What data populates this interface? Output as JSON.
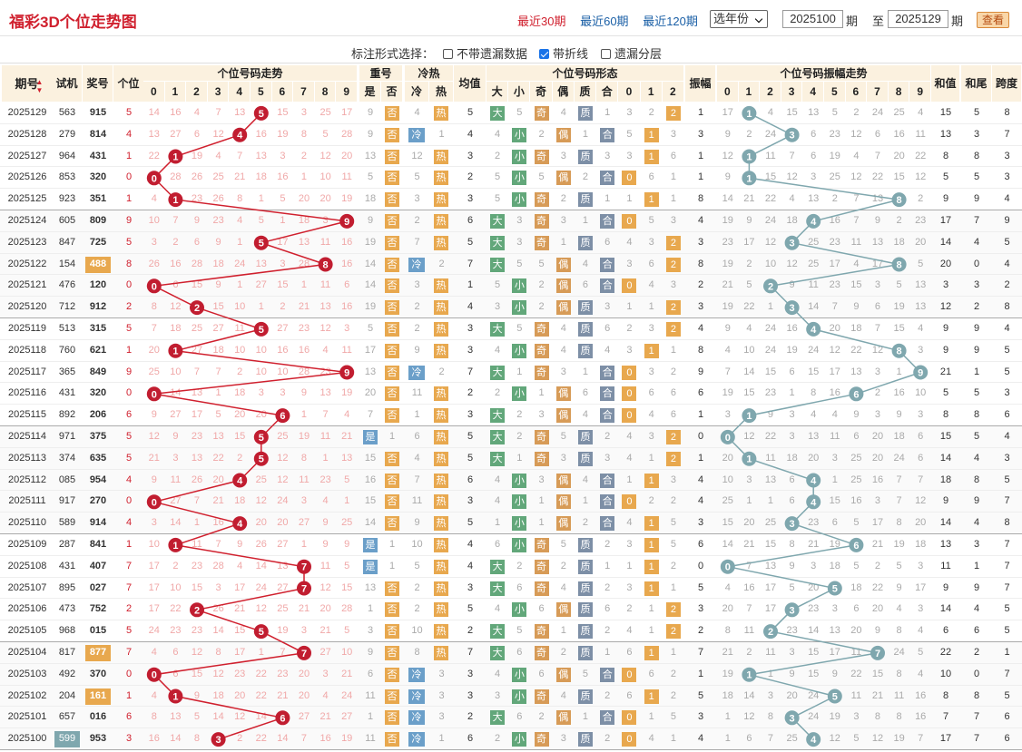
{
  "title": "福彩3D个位走势图",
  "periods": [
    "最近30期",
    "最近60期",
    "最近120期"
  ],
  "year_select": "选年份",
  "from": "2025100",
  "from_unit": "期",
  "to_label": "至",
  "to": "2025129",
  "to_unit": "期",
  "query": "查看",
  "option_label": "标注形式选择：",
  "options": [
    {
      "label": "不带遗漏数据",
      "checked": false
    },
    {
      "label": "带折线",
      "checked": true
    },
    {
      "label": "遗漏分层",
      "checked": false
    }
  ],
  "headers": {
    "issue": "期号",
    "test": "试机",
    "prize": "奖号",
    "pos": "个位",
    "trend": "个位号码走势",
    "repeat": "重号",
    "hotcold": "冷热",
    "avg": "均值",
    "shape": "个位号码形态",
    "amp": "振幅",
    "amptrend": "个位号码振幅走势",
    "sum": "和值",
    "tail": "和尾",
    "span": "跨度"
  },
  "subheaders": {
    "digits": [
      "0",
      "1",
      "2",
      "3",
      "4",
      "5",
      "6",
      "7",
      "8",
      "9"
    ],
    "repeat": [
      "是",
      "否"
    ],
    "hotcold": [
      "冷",
      "热"
    ],
    "shape": [
      "大",
      "小",
      "奇",
      "偶",
      "质",
      "合",
      "0",
      "1",
      "2"
    ]
  },
  "rows": [
    {
      "issue": "2025129",
      "test": "563",
      "prize": "915",
      "d": 5,
      "rep": 0,
      "hot": 1,
      "avg": "5",
      "big": 1,
      "odd": 1,
      "prime": 1,
      "mod": 2,
      "amp": "1",
      "sum": "15",
      "tail": "5",
      "span": "8"
    },
    {
      "issue": "2025128",
      "test": "279",
      "prize": "814",
      "d": 4,
      "rep": 0,
      "hot": 0,
      "avg": "4",
      "big": 0,
      "odd": 0,
      "prime": 0,
      "mod": 1,
      "amp": "3",
      "sum": "13",
      "tail": "3",
      "span": "7"
    },
    {
      "issue": "2025127",
      "test": "964",
      "prize": "431",
      "d": 1,
      "rep": 0,
      "hot": 1,
      "avg": "3",
      "big": 0,
      "odd": 1,
      "prime": 1,
      "mod": 1,
      "amp": "1",
      "sum": "8",
      "tail": "8",
      "span": "3"
    },
    {
      "issue": "2025126",
      "test": "853",
      "prize": "320",
      "d": 0,
      "rep": 0,
      "hot": 1,
      "avg": "2",
      "big": 0,
      "odd": 0,
      "prime": 0,
      "mod": 0,
      "amp": "1",
      "sum": "5",
      "tail": "5",
      "span": "3"
    },
    {
      "issue": "2025125",
      "test": "923",
      "prize": "351",
      "d": 1,
      "rep": 0,
      "hot": 1,
      "avg": "3",
      "big": 0,
      "odd": 1,
      "prime": 1,
      "mod": 1,
      "amp": "8",
      "sum": "9",
      "tail": "9",
      "span": "4"
    },
    {
      "issue": "2025124",
      "test": "605",
      "prize": "809",
      "d": 9,
      "rep": 0,
      "hot": 1,
      "avg": "6",
      "big": 1,
      "odd": 1,
      "prime": 0,
      "mod": 0,
      "amp": "4",
      "sum": "17",
      "tail": "7",
      "span": "9"
    },
    {
      "issue": "2025123",
      "test": "847",
      "prize": "725",
      "d": 5,
      "rep": 0,
      "hot": 1,
      "avg": "5",
      "big": 1,
      "odd": 1,
      "prime": 1,
      "mod": 2,
      "amp": "3",
      "sum": "14",
      "tail": "4",
      "span": "5"
    },
    {
      "issue": "2025122",
      "test": "154",
      "prize": "488",
      "d": 8,
      "rep": 0,
      "hot": 0,
      "avg": "7",
      "big": 1,
      "odd": 0,
      "prime": 0,
      "mod": 2,
      "amp": "8",
      "sum": "20",
      "tail": "0",
      "span": "4",
      "hl": true
    },
    {
      "issue": "2025121",
      "test": "476",
      "prize": "120",
      "d": 0,
      "rep": 0,
      "hot": 1,
      "avg": "1",
      "big": 0,
      "odd": 0,
      "prime": 0,
      "mod": 0,
      "amp": "2",
      "sum": "3",
      "tail": "3",
      "span": "2"
    },
    {
      "issue": "2025120",
      "test": "712",
      "prize": "912",
      "d": 2,
      "rep": 0,
      "hot": 1,
      "avg": "4",
      "big": 0,
      "odd": 0,
      "prime": 1,
      "mod": 2,
      "amp": "3",
      "sum": "12",
      "tail": "2",
      "span": "8"
    },
    {
      "issue": "2025119",
      "test": "513",
      "prize": "315",
      "d": 5,
      "rep": 0,
      "hot": 1,
      "avg": "3",
      "big": 1,
      "odd": 1,
      "prime": 1,
      "mod": 2,
      "amp": "4",
      "sum": "9",
      "tail": "9",
      "span": "4"
    },
    {
      "issue": "2025118",
      "test": "760",
      "prize": "621",
      "d": 1,
      "rep": 0,
      "hot": 1,
      "avg": "3",
      "big": 0,
      "odd": 1,
      "prime": 1,
      "mod": 1,
      "amp": "8",
      "sum": "9",
      "tail": "9",
      "span": "5"
    },
    {
      "issue": "2025117",
      "test": "365",
      "prize": "849",
      "d": 9,
      "rep": 0,
      "hot": 0,
      "avg": "7",
      "big": 1,
      "odd": 1,
      "prime": 0,
      "mod": 0,
      "amp": "9",
      "sum": "21",
      "tail": "1",
      "span": "5"
    },
    {
      "issue": "2025116",
      "test": "431",
      "prize": "320",
      "d": 0,
      "rep": 0,
      "hot": 1,
      "avg": "2",
      "big": 0,
      "odd": 0,
      "prime": 0,
      "mod": 0,
      "amp": "6",
      "sum": "5",
      "tail": "5",
      "span": "3"
    },
    {
      "issue": "2025115",
      "test": "892",
      "prize": "206",
      "d": 6,
      "rep": 0,
      "hot": 1,
      "avg": "3",
      "big": 1,
      "odd": 0,
      "prime": 0,
      "mod": 0,
      "amp": "1",
      "sum": "8",
      "tail": "8",
      "span": "6"
    },
    {
      "issue": "2025114",
      "test": "971",
      "prize": "375",
      "d": 5,
      "rep": 1,
      "hot": 1,
      "avg": "5",
      "big": 1,
      "odd": 1,
      "prime": 1,
      "mod": 2,
      "amp": "0",
      "sum": "15",
      "tail": "5",
      "span": "4"
    },
    {
      "issue": "2025113",
      "test": "374",
      "prize": "635",
      "d": 5,
      "rep": 0,
      "hot": 1,
      "avg": "5",
      "big": 1,
      "odd": 1,
      "prime": 1,
      "mod": 2,
      "amp": "1",
      "sum": "14",
      "tail": "4",
      "span": "3"
    },
    {
      "issue": "2025112",
      "test": "085",
      "prize": "954",
      "d": 4,
      "rep": 0,
      "hot": 1,
      "avg": "6",
      "big": 0,
      "odd": 0,
      "prime": 0,
      "mod": 1,
      "amp": "4",
      "sum": "18",
      "tail": "8",
      "span": "5"
    },
    {
      "issue": "2025111",
      "test": "917",
      "prize": "270",
      "d": 0,
      "rep": 0,
      "hot": 1,
      "avg": "3",
      "big": 0,
      "odd": 0,
      "prime": 0,
      "mod": 0,
      "amp": "4",
      "sum": "9",
      "tail": "9",
      "span": "7"
    },
    {
      "issue": "2025110",
      "test": "589",
      "prize": "914",
      "d": 4,
      "rep": 0,
      "hot": 1,
      "avg": "5",
      "big": 0,
      "odd": 0,
      "prime": 0,
      "mod": 1,
      "amp": "3",
      "sum": "14",
      "tail": "4",
      "span": "8"
    },
    {
      "issue": "2025109",
      "test": "287",
      "prize": "841",
      "d": 1,
      "rep": 1,
      "hot": 1,
      "avg": "4",
      "big": 0,
      "odd": 1,
      "prime": 1,
      "mod": 1,
      "amp": "6",
      "sum": "13",
      "tail": "3",
      "span": "7"
    },
    {
      "issue": "2025108",
      "test": "431",
      "prize": "407",
      "d": 7,
      "rep": 1,
      "hot": 1,
      "avg": "4",
      "big": 1,
      "odd": 1,
      "prime": 1,
      "mod": 1,
      "amp": "0",
      "sum": "11",
      "tail": "1",
      "span": "7"
    },
    {
      "issue": "2025107",
      "test": "895",
      "prize": "027",
      "d": 7,
      "rep": 0,
      "hot": 1,
      "avg": "3",
      "big": 1,
      "odd": 1,
      "prime": 1,
      "mod": 1,
      "amp": "5",
      "sum": "9",
      "tail": "9",
      "span": "7"
    },
    {
      "issue": "2025106",
      "test": "473",
      "prize": "752",
      "d": 2,
      "rep": 0,
      "hot": 1,
      "avg": "5",
      "big": 0,
      "odd": 0,
      "prime": 1,
      "mod": 2,
      "amp": "3",
      "sum": "14",
      "tail": "4",
      "span": "5"
    },
    {
      "issue": "2025105",
      "test": "968",
      "prize": "015",
      "d": 5,
      "rep": 0,
      "hot": 1,
      "avg": "2",
      "big": 1,
      "odd": 1,
      "prime": 1,
      "mod": 2,
      "amp": "2",
      "sum": "6",
      "tail": "6",
      "span": "5"
    },
    {
      "issue": "2025104",
      "test": "817",
      "prize": "877",
      "d": 7,
      "rep": 0,
      "hot": 1,
      "avg": "7",
      "big": 1,
      "odd": 1,
      "prime": 1,
      "mod": 1,
      "amp": "7",
      "sum": "22",
      "tail": "2",
      "span": "1",
      "hl": true
    },
    {
      "issue": "2025103",
      "test": "492",
      "prize": "370",
      "d": 0,
      "rep": 0,
      "hot": 0,
      "avg": "3",
      "big": 0,
      "odd": 0,
      "prime": 0,
      "mod": 0,
      "amp": "1",
      "sum": "10",
      "tail": "0",
      "span": "7"
    },
    {
      "issue": "2025102",
      "test": "204",
      "prize": "161",
      "d": 1,
      "rep": 0,
      "hot": 0,
      "avg": "3",
      "big": 0,
      "odd": 1,
      "prime": 1,
      "mod": 1,
      "amp": "5",
      "sum": "8",
      "tail": "8",
      "span": "5",
      "hl": true
    },
    {
      "issue": "2025101",
      "test": "657",
      "prize": "016",
      "d": 6,
      "rep": 0,
      "hot": 0,
      "avg": "2",
      "big": 1,
      "odd": 0,
      "prime": 0,
      "mod": 0,
      "amp": "3",
      "sum": "7",
      "tail": "7",
      "span": "6"
    },
    {
      "issue": "2025100",
      "test": "599",
      "prize": "953",
      "d": 3,
      "rep": 0,
      "hot": 0,
      "avg": "6",
      "big": 0,
      "odd": 1,
      "prime": 1,
      "mod": 0,
      "amp": "4",
      "sum": "17",
      "tail": "7",
      "span": "6",
      "hlt": true
    }
  ],
  "colors": {
    "accent": "#d0202e",
    "ball": "#c11d30",
    "ampball": "#7fa7ae",
    "orange": "#e8a84e",
    "green": "#6fbf8d",
    "blue": "#5a9bd5",
    "header": "#fbf1df"
  }
}
